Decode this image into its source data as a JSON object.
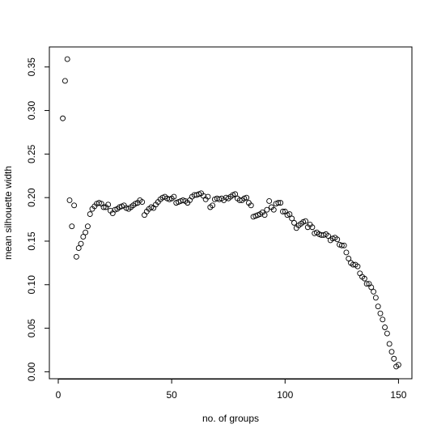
{
  "chart_data": {
    "type": "scatter",
    "xlabel": "no. of groups",
    "ylabel": "mean silhouette width",
    "x": [
      2,
      3,
      4,
      5,
      6,
      7,
      8,
      9,
      10,
      11,
      12,
      13,
      14,
      15,
      16,
      17,
      18,
      19,
      20,
      21,
      22,
      23,
      24,
      25,
      26,
      27,
      28,
      29,
      30,
      31,
      32,
      33,
      34,
      35,
      36,
      37,
      38,
      39,
      40,
      41,
      42,
      43,
      44,
      45,
      46,
      47,
      48,
      49,
      50,
      51,
      52,
      53,
      54,
      55,
      56,
      57,
      58,
      59,
      60,
      61,
      62,
      63,
      64,
      65,
      66,
      67,
      68,
      69,
      70,
      71,
      72,
      73,
      74,
      75,
      76,
      77,
      78,
      79,
      80,
      81,
      82,
      83,
      84,
      85,
      86,
      87,
      88,
      89,
      90,
      91,
      92,
      93,
      94,
      95,
      96,
      97,
      98,
      99,
      100,
      101,
      102,
      103,
      104,
      105,
      106,
      107,
      108,
      109,
      110,
      111,
      112,
      113,
      114,
      115,
      116,
      117,
      118,
      119,
      120,
      121,
      122,
      123,
      124,
      125,
      126,
      127,
      128,
      129,
      130,
      131,
      132,
      133,
      134,
      135,
      136,
      137,
      138,
      139,
      140,
      141,
      142,
      143,
      144,
      145,
      146,
      147,
      148,
      149,
      150
    ],
    "values": [
      0.291,
      0.334,
      0.359,
      0.197,
      0.167,
      0.191,
      0.132,
      0.142,
      0.147,
      0.155,
      0.16,
      0.167,
      0.181,
      0.187,
      0.19,
      0.193,
      0.194,
      0.193,
      0.189,
      0.189,
      0.192,
      0.185,
      0.182,
      0.186,
      0.187,
      0.189,
      0.19,
      0.191,
      0.188,
      0.187,
      0.189,
      0.191,
      0.193,
      0.194,
      0.197,
      0.195,
      0.18,
      0.184,
      0.187,
      0.189,
      0.188,
      0.192,
      0.195,
      0.198,
      0.2,
      0.201,
      0.199,
      0.198,
      0.199,
      0.201,
      0.194,
      0.195,
      0.196,
      0.197,
      0.196,
      0.194,
      0.197,
      0.201,
      0.203,
      0.203,
      0.204,
      0.205,
      0.202,
      0.198,
      0.201,
      0.189,
      0.191,
      0.198,
      0.199,
      0.198,
      0.199,
      0.197,
      0.2,
      0.199,
      0.201,
      0.203,
      0.204,
      0.199,
      0.197,
      0.197,
      0.199,
      0.2,
      0.194,
      0.191,
      0.178,
      0.179,
      0.18,
      0.181,
      0.183,
      0.18,
      0.186,
      0.196,
      0.189,
      0.186,
      0.193,
      0.194,
      0.194,
      0.184,
      0.184,
      0.18,
      0.181,
      0.176,
      0.171,
      0.165,
      0.168,
      0.17,
      0.172,
      0.173,
      0.166,
      0.169,
      0.166,
      0.159,
      0.16,
      0.158,
      0.157,
      0.157,
      0.158,
      0.156,
      0.151,
      0.153,
      0.154,
      0.152,
      0.146,
      0.145,
      0.145,
      0.137,
      0.13,
      0.125,
      0.123,
      0.123,
      0.121,
      0.113,
      0.109,
      0.107,
      0.101,
      0.101,
      0.097,
      0.092,
      0.085,
      0.075,
      0.067,
      0.06,
      0.051,
      0.044,
      0.032,
      0.023,
      0.015,
      0.006,
      0.008
    ],
    "color": "#000000",
    "xlim": [
      -3.92,
      155.92
    ],
    "xticks": [
      0,
      50,
      100,
      150
    ],
    "ylim": [
      -0.008,
      0.373
    ],
    "yticks": [
      {
        "value": 0,
        "label": "0.00"
      },
      {
        "value": 0.05,
        "label": "0.05"
      },
      {
        "value": 0.1,
        "label": "0.10"
      },
      {
        "value": 0.15,
        "label": "0.15"
      },
      {
        "value": 0.2,
        "label": "0.20"
      },
      {
        "value": 0.25,
        "label": "0.25"
      },
      {
        "value": 0.3,
        "label": "0.30"
      },
      {
        "value": 0.35,
        "label": "0.35"
      }
    ],
    "grid": false
  }
}
